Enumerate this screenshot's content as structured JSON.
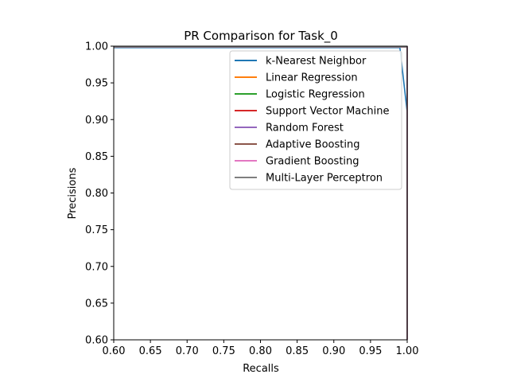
{
  "chart_data": {
    "type": "line",
    "title": "PR Comparison for Task_0",
    "xlabel": "Recalls",
    "ylabel": "Precisions",
    "xlim": [
      0.6,
      1.0
    ],
    "ylim": [
      0.6,
      1.0
    ],
    "xticks": [
      "0.60",
      "0.65",
      "0.70",
      "0.75",
      "0.80",
      "0.85",
      "0.90",
      "0.95",
      "1.00"
    ],
    "yticks": [
      "0.60",
      "0.65",
      "0.70",
      "0.75",
      "0.80",
      "0.85",
      "0.90",
      "0.95",
      "1.00"
    ],
    "grid": false,
    "legend_position": "top-right",
    "series": [
      {
        "name": "k-Nearest Neighbor",
        "color": "#1f77b4",
        "x": [
          0.6,
          0.99,
          1.0,
          1.0
        ],
        "y": [
          0.998,
          0.998,
          0.91,
          0.6
        ]
      },
      {
        "name": "Linear Regression",
        "color": "#ff7f0e",
        "x": [
          0.6,
          1.0,
          1.0
        ],
        "y": [
          0.999,
          0.999,
          0.6
        ]
      },
      {
        "name": "Logistic Regression",
        "color": "#2ca02c",
        "x": [
          0.6,
          1.0,
          1.0
        ],
        "y": [
          0.999,
          0.999,
          0.6
        ]
      },
      {
        "name": "Support Vector Machine",
        "color": "#d62728",
        "x": [
          0.6,
          1.0,
          1.0
        ],
        "y": [
          0.999,
          0.999,
          0.6
        ]
      },
      {
        "name": "Random Forest",
        "color": "#9467bd",
        "x": [
          0.6,
          1.0,
          1.0
        ],
        "y": [
          0.999,
          0.999,
          0.6
        ]
      },
      {
        "name": "Adaptive Boosting",
        "color": "#8c564b",
        "x": [
          0.6,
          1.0,
          1.0
        ],
        "y": [
          0.999,
          0.999,
          0.6
        ]
      },
      {
        "name": "Gradient Boosting",
        "color": "#e377c2",
        "x": [
          0.6,
          1.0,
          1.0
        ],
        "y": [
          0.999,
          0.999,
          0.6
        ]
      },
      {
        "name": "Multi-Layer Perceptron",
        "color": "#7f7f7f",
        "x": [
          0.6,
          1.0,
          1.0
        ],
        "y": [
          0.999,
          0.999,
          0.6
        ]
      }
    ]
  }
}
